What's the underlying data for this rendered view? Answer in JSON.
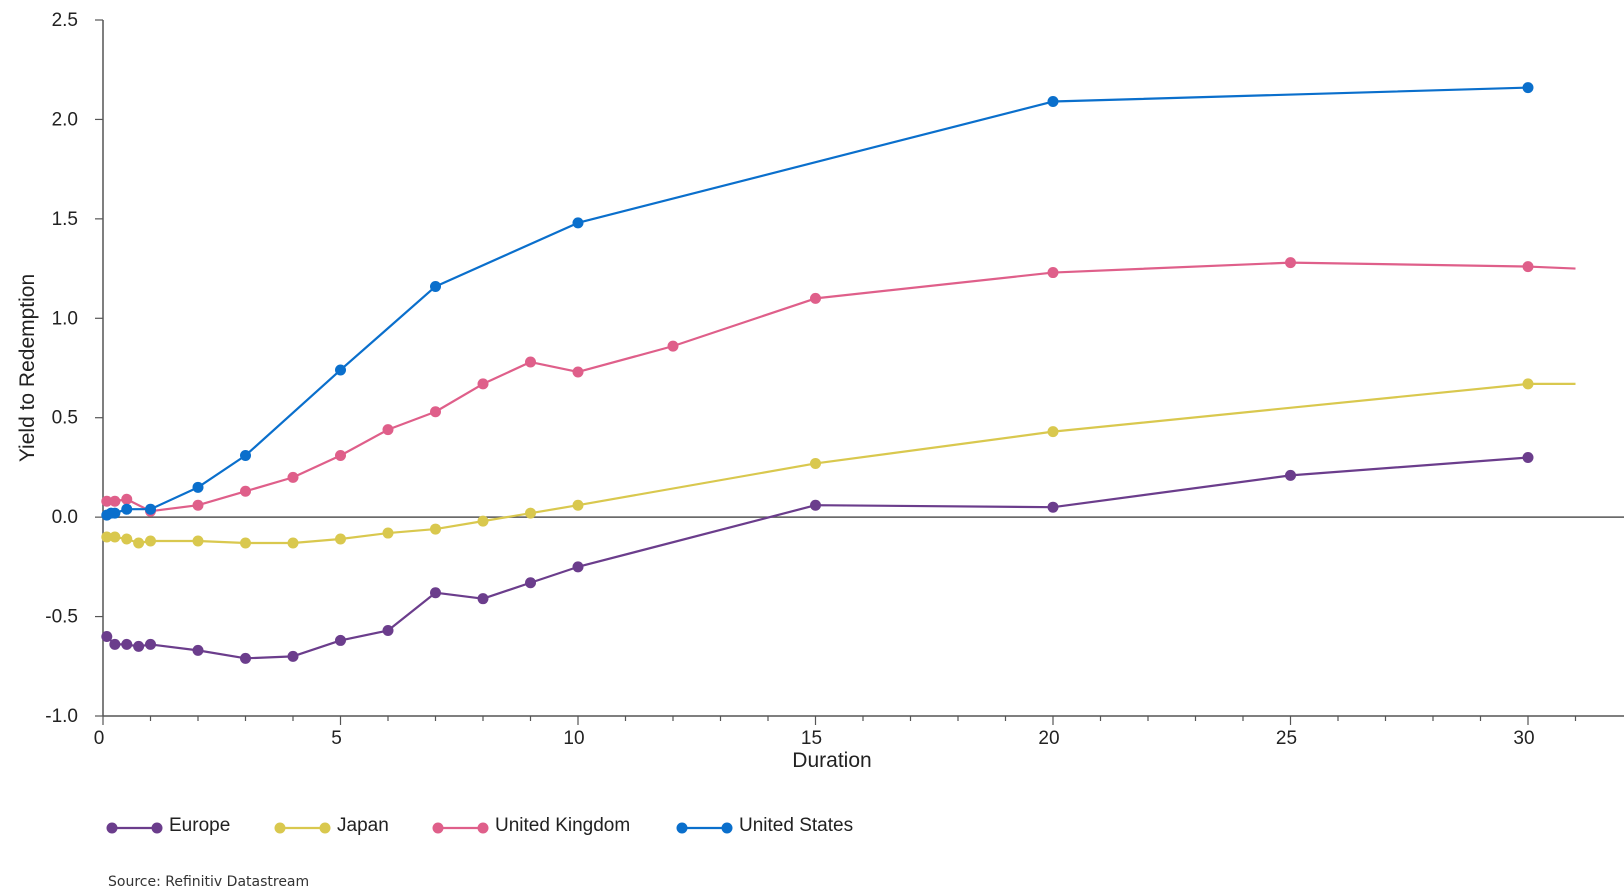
{
  "chart_data": {
    "type": "line",
    "xlabel": "Duration",
    "ylabel": "Yield to Redemption",
    "xlim": [
      0,
      31
    ],
    "ylim": [
      -1.0,
      2.5
    ],
    "x_ticks": [
      0,
      5,
      10,
      15,
      20,
      25,
      30
    ],
    "y_ticks": [
      -1.0,
      -0.5,
      0.0,
      0.5,
      1.0,
      1.5,
      2.0,
      2.5
    ],
    "y_tick_labels": [
      "-1.0",
      "-0.5",
      "0.0",
      "0.5",
      "1.0",
      "1.5",
      "2.0",
      "2.5"
    ],
    "x_tick_labels": [
      "0",
      "5",
      "10",
      "15",
      "20",
      "25",
      "30"
    ],
    "zero_line": true,
    "legend_position": "bottom-left",
    "series": [
      {
        "name": "Europe",
        "color": "#6b3d8c",
        "points": [
          [
            0.08,
            -0.6
          ],
          [
            0.25,
            -0.64
          ],
          [
            0.5,
            -0.64
          ],
          [
            0.75,
            -0.65
          ],
          [
            1,
            -0.64
          ],
          [
            2,
            -0.67
          ],
          [
            3,
            -0.71
          ],
          [
            4,
            -0.7
          ],
          [
            5,
            -0.62
          ],
          [
            6,
            -0.57
          ],
          [
            7,
            -0.38
          ],
          [
            8,
            -0.41
          ],
          [
            9,
            -0.33
          ],
          [
            10,
            -0.25
          ],
          [
            15,
            0.06
          ],
          [
            20,
            0.05
          ],
          [
            25,
            0.21
          ],
          [
            30,
            0.3
          ]
        ],
        "marker_points": 18,
        "extends_beyond": null
      },
      {
        "name": "Japan",
        "color": "#d9c84e",
        "points": [
          [
            0.08,
            -0.1
          ],
          [
            0.25,
            -0.1
          ],
          [
            0.5,
            -0.11
          ],
          [
            0.75,
            -0.13
          ],
          [
            1,
            -0.12
          ],
          [
            2,
            -0.12
          ],
          [
            3,
            -0.13
          ],
          [
            4,
            -0.13
          ],
          [
            5,
            -0.11
          ],
          [
            6,
            -0.08
          ],
          [
            7,
            -0.06
          ],
          [
            8,
            -0.02
          ],
          [
            9,
            0.02
          ],
          [
            10,
            0.06
          ],
          [
            15,
            0.27
          ],
          [
            20,
            0.43
          ],
          [
            30,
            0.67
          ]
        ],
        "extends_beyond": [
          31,
          0.67
        ]
      },
      {
        "name": "United Kingdom",
        "color": "#df5f8a",
        "points": [
          [
            0.08,
            0.08
          ],
          [
            0.25,
            0.08
          ],
          [
            0.5,
            0.09
          ],
          [
            1,
            0.03
          ],
          [
            2,
            0.06
          ],
          [
            3,
            0.13
          ],
          [
            4,
            0.2
          ],
          [
            5,
            0.31
          ],
          [
            6,
            0.44
          ],
          [
            7,
            0.53
          ],
          [
            8,
            0.67
          ],
          [
            9,
            0.78
          ],
          [
            10,
            0.73
          ],
          [
            12,
            0.86
          ],
          [
            15,
            1.1
          ],
          [
            20,
            1.23
          ],
          [
            25,
            1.28
          ],
          [
            30,
            1.26
          ]
        ],
        "extends_beyond": [
          31,
          1.25
        ]
      },
      {
        "name": "United States",
        "color": "#0a6fcc",
        "points": [
          [
            0.08,
            0.01
          ],
          [
            0.17,
            0.02
          ],
          [
            0.25,
            0.02
          ],
          [
            0.5,
            0.04
          ],
          [
            1,
            0.04
          ],
          [
            2,
            0.15
          ],
          [
            3,
            0.31
          ],
          [
            5,
            0.74
          ],
          [
            7,
            1.16
          ],
          [
            10,
            1.48
          ],
          [
            20,
            2.09
          ],
          [
            30,
            2.16
          ]
        ],
        "extends_beyond": null
      }
    ]
  },
  "legend": {
    "items": [
      "Europe",
      "Japan",
      "United Kingdom",
      "United States"
    ]
  },
  "source": "Source: Refinitiv Datastream"
}
